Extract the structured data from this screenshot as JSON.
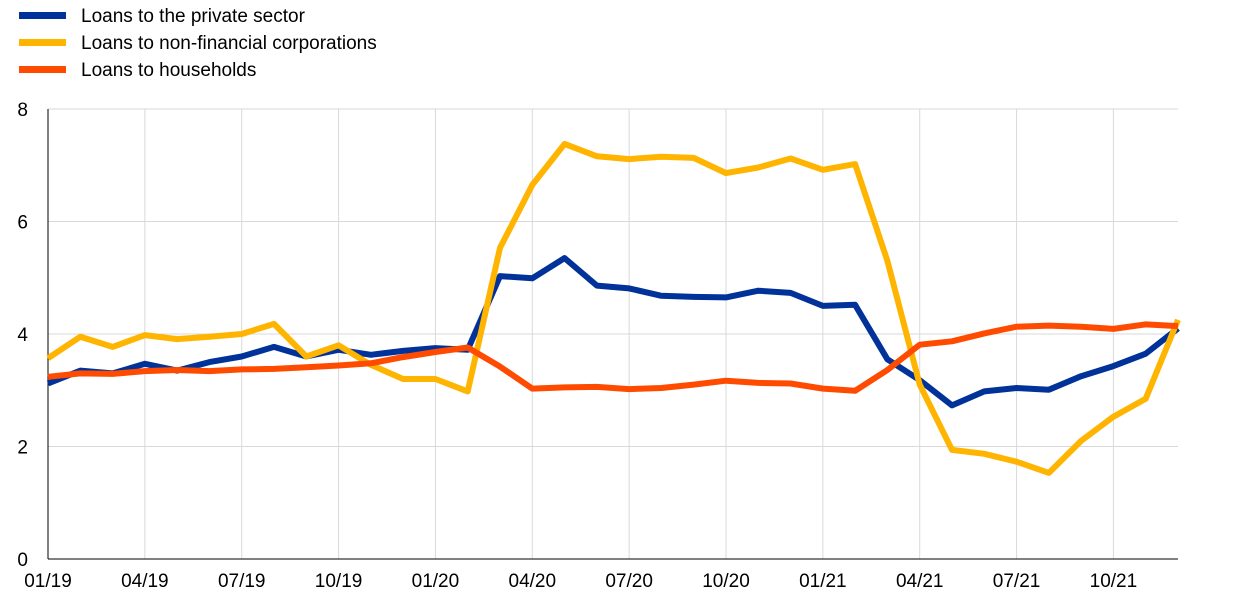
{
  "chart_data": {
    "type": "line",
    "title": "",
    "xlabel": "",
    "ylabel": "",
    "ylim": [
      0,
      8
    ],
    "yticks": [
      0,
      2,
      4,
      6,
      8
    ],
    "grid": true,
    "legend_position": "top-left",
    "x": [
      "01/19",
      "02/19",
      "03/19",
      "04/19",
      "05/19",
      "06/19",
      "07/19",
      "08/19",
      "09/19",
      "10/19",
      "11/19",
      "12/19",
      "01/20",
      "02/20",
      "03/20",
      "04/20",
      "05/20",
      "06/20",
      "07/20",
      "08/20",
      "09/20",
      "10/20",
      "11/20",
      "12/20",
      "01/21",
      "02/21",
      "03/21",
      "04/21",
      "05/21",
      "06/21",
      "07/21",
      "08/21",
      "09/21",
      "10/21",
      "11/21",
      "12/21"
    ],
    "xtick_labels": [
      "01/19",
      "04/19",
      "07/19",
      "10/19",
      "01/20",
      "04/20",
      "07/20",
      "10/20",
      "01/21",
      "04/21",
      "07/21",
      "10/21"
    ],
    "series": [
      {
        "name": "Loans to the private sector",
        "color": "#003299",
        "values": [
          3.12,
          3.35,
          3.3,
          3.47,
          3.35,
          3.5,
          3.6,
          3.77,
          3.6,
          3.72,
          3.63,
          3.7,
          3.75,
          3.72,
          5.03,
          4.99,
          5.35,
          4.86,
          4.81,
          4.68,
          4.66,
          4.65,
          4.77,
          4.73,
          4.5,
          4.52,
          3.55,
          3.18,
          2.73,
          2.98,
          3.04,
          3.01,
          3.25,
          3.43,
          3.65,
          4.1
        ]
      },
      {
        "name": "Loans to non-financial corporations",
        "color": "#FFB400",
        "values": [
          3.57,
          3.95,
          3.77,
          3.98,
          3.91,
          3.95,
          4.0,
          4.18,
          3.6,
          3.8,
          3.45,
          3.2,
          3.2,
          2.98,
          5.53,
          6.65,
          7.38,
          7.16,
          7.11,
          7.15,
          7.13,
          6.86,
          6.96,
          7.12,
          6.92,
          7.02,
          5.3,
          3.1,
          1.94,
          1.87,
          1.73,
          1.53,
          2.1,
          2.53,
          2.85,
          4.25
        ]
      },
      {
        "name": "Loans to households",
        "color": "#FF4B00",
        "values": [
          3.24,
          3.3,
          3.29,
          3.34,
          3.36,
          3.34,
          3.37,
          3.38,
          3.41,
          3.44,
          3.48,
          3.59,
          3.68,
          3.76,
          3.42,
          3.03,
          3.05,
          3.06,
          3.02,
          3.04,
          3.1,
          3.17,
          3.13,
          3.12,
          3.03,
          2.99,
          3.36,
          3.81,
          3.87,
          4.01,
          4.13,
          4.15,
          4.13,
          4.09,
          4.17,
          4.14
        ]
      }
    ]
  }
}
